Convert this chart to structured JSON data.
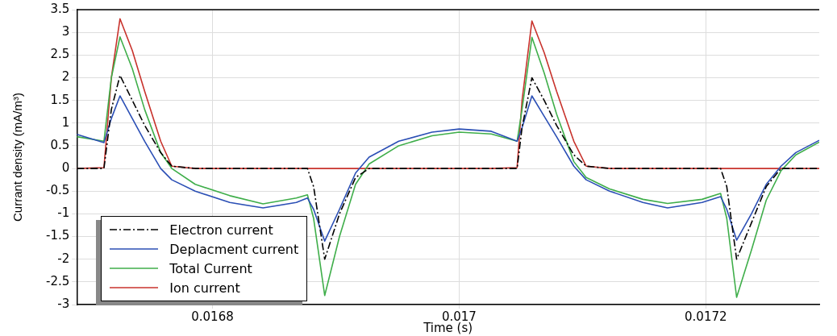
{
  "chart_data": {
    "type": "line",
    "xlabel": "Time (s)",
    "ylabel": "Currant density (mA/m³)",
    "x": [
      0.01669,
      0.016712,
      0.016718,
      0.016725,
      0.016735,
      0.016745,
      0.016758,
      0.016767,
      0.016786,
      0.016814,
      0.016841,
      0.016868,
      0.016877,
      0.016882,
      0.016891,
      0.016903,
      0.016916,
      0.016927,
      0.016951,
      0.016978,
      0.017,
      0.017026,
      0.017047,
      0.017051,
      0.017059,
      0.017069,
      0.017079,
      0.017093,
      0.017103,
      0.017122,
      0.017149,
      0.017169,
      0.017197,
      0.017212,
      0.017217,
      0.017225,
      0.017237,
      0.017249,
      0.017261,
      0.017273,
      0.017292
    ],
    "series": [
      {
        "name": "Electron current",
        "color": "#000000",
        "line_style": "dashed",
        "values": [
          0,
          0,
          1.3,
          2.05,
          1.5,
          0.95,
          0.35,
          0.05,
          0,
          0,
          0,
          0,
          0,
          -0.4,
          -2.0,
          -1.0,
          -0.2,
          0,
          0,
          0,
          0,
          0,
          0,
          0.9,
          2.0,
          1.5,
          0.95,
          0.3,
          0.05,
          0,
          0,
          0,
          0,
          0,
          -0.4,
          -2.0,
          -1.2,
          -0.4,
          0,
          0,
          0
        ]
      },
      {
        "name": "Deplacment current",
        "color": "#2b4fb5",
        "line_style": "solid",
        "values": [
          0.75,
          0.57,
          1.1,
          1.6,
          1.1,
          0.6,
          0,
          -0.25,
          -0.5,
          -0.75,
          -0.87,
          -0.75,
          -0.65,
          -0.9,
          -1.6,
          -0.9,
          -0.1,
          0.25,
          0.6,
          0.8,
          0.87,
          0.82,
          0.6,
          0.9,
          1.6,
          1.15,
          0.7,
          0.05,
          -0.25,
          -0.5,
          -0.75,
          -0.87,
          -0.75,
          -0.62,
          -0.9,
          -1.58,
          -1.0,
          -0.35,
          0.05,
          0.35,
          0.62
        ]
      },
      {
        "name": "Total Current",
        "color": "#3fae4a",
        "line_style": "solid",
        "values": [
          0.7,
          0.6,
          2.0,
          2.9,
          2.2,
          1.3,
          0.35,
          0,
          -0.35,
          -0.6,
          -0.78,
          -0.65,
          -0.58,
          -1.1,
          -2.8,
          -1.5,
          -0.35,
          0.1,
          0.5,
          0.72,
          0.8,
          0.76,
          0.6,
          1.3,
          2.89,
          2.1,
          1.2,
          0.15,
          -0.2,
          -0.45,
          -0.68,
          -0.77,
          -0.68,
          -0.55,
          -1.1,
          -2.84,
          -1.8,
          -0.7,
          -0.05,
          0.3,
          0.58
        ]
      },
      {
        "name": "Ion current",
        "color": "#c8322c",
        "line_style": "solid",
        "values": [
          0,
          0.02,
          2.0,
          3.3,
          2.6,
          1.7,
          0.6,
          0.05,
          0,
          0,
          0,
          0,
          0,
          0,
          0,
          0,
          0,
          0,
          0,
          0,
          0,
          0,
          0.02,
          1.5,
          3.25,
          2.55,
          1.7,
          0.6,
          0.05,
          0,
          0,
          0,
          0,
          0,
          0,
          0,
          0,
          0,
          0,
          0,
          0
        ]
      }
    ],
    "xlim": [
      0.01669,
      0.017292
    ],
    "xticks": [
      0.0168,
      0.017,
      0.0172
    ],
    "ylim": [
      -3,
      3.5
    ],
    "yticks": [
      -3,
      -2.5,
      -2,
      -1.5,
      -1,
      -0.5,
      0,
      0.5,
      1,
      1.5,
      2,
      2.5,
      3,
      3.5
    ],
    "grid": true,
    "legend": "bottom left",
    "marker": "none"
  }
}
